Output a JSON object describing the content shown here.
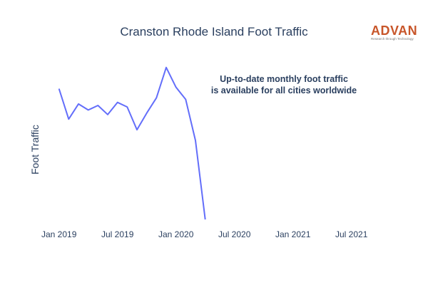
{
  "chart_data": {
    "type": "line",
    "title": "Cranston Rhode Island Foot Traffic",
    "ylabel": "Foot Traffic",
    "xlabel": "",
    "grid": false,
    "x_ticks": [
      "Jan 2019",
      "Jul 2019",
      "Jan 2020",
      "Jul 2020",
      "Jan 2021",
      "Jul 2021"
    ],
    "x_range": [
      "2018-12",
      "2021-09"
    ],
    "y_range": [
      0,
      105
    ],
    "series": [
      {
        "color": "#636efa",
        "x": [
          "2019-01",
          "2019-02",
          "2019-03",
          "2019-04",
          "2019-05",
          "2019-06",
          "2019-07",
          "2019-08",
          "2019-09",
          "2019-10",
          "2019-11",
          "2019-12",
          "2020-01",
          "2020-02",
          "2020-03",
          "2020-04"
        ],
        "values": [
          86,
          66,
          76,
          72,
          75,
          69,
          77,
          74,
          59,
          70,
          80,
          100,
          87,
          79,
          52,
          0
        ]
      }
    ],
    "annotation": [
      "Up-to-date monthly foot traffic",
      "is available for all cities worldwide"
    ]
  },
  "logo": {
    "text": "ADVAN",
    "tagline": "Research through Technology"
  }
}
